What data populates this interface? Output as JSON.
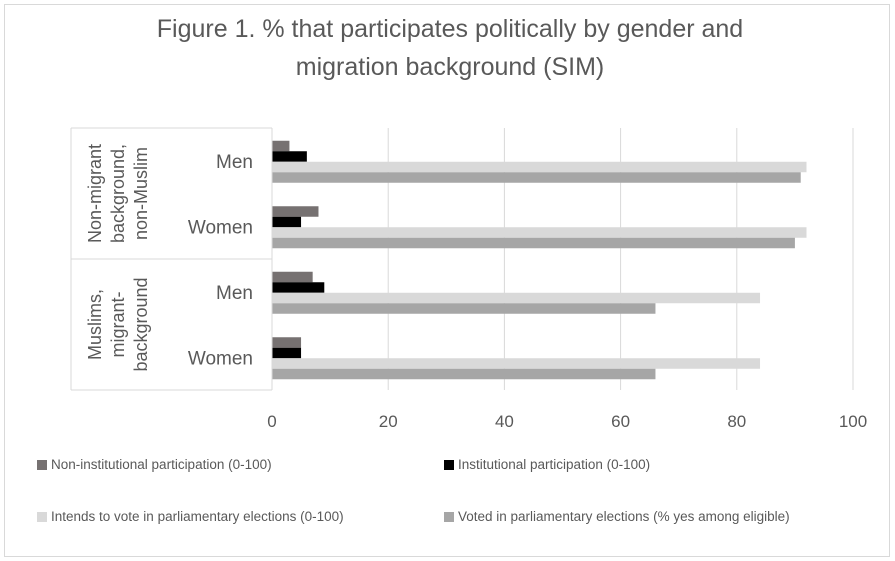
{
  "chart_data": {
    "type": "bar",
    "orientation": "horizontal",
    "title_lines": [
      "Figure 1. % that participates politically by gender and",
      "migration background (SIM)"
    ],
    "groups": [
      {
        "label_lines": [
          "Non-migrant",
          "background,",
          "non-Muslim"
        ],
        "categories": [
          "Men",
          "Women"
        ]
      },
      {
        "label_lines": [
          "Muslims,",
          "migrant-",
          "background"
        ],
        "categories": [
          "Men",
          "Women"
        ]
      }
    ],
    "xlim": [
      0,
      100
    ],
    "xticks": [
      "0",
      "20",
      "40",
      "60",
      "80",
      "100"
    ],
    "grid": true,
    "legend_position": "bottom",
    "series": [
      {
        "name": "Non-institutional participation (0-100)",
        "color": "#767171",
        "values": [
          3,
          8,
          7,
          5
        ]
      },
      {
        "name": "Institutional participation (0-100)",
        "color": "#000000",
        "values": [
          6,
          5,
          9,
          5
        ]
      },
      {
        "name": "Intends to vote in parliamentary elections (0-100)",
        "color": "#d9d9d9",
        "values": [
          92,
          92,
          84,
          84
        ]
      },
      {
        "name": "Voted in parliamentary elections (% yes among eligible)",
        "color": "#a6a6a6",
        "values": [
          91,
          90,
          66,
          66
        ]
      }
    ]
  }
}
